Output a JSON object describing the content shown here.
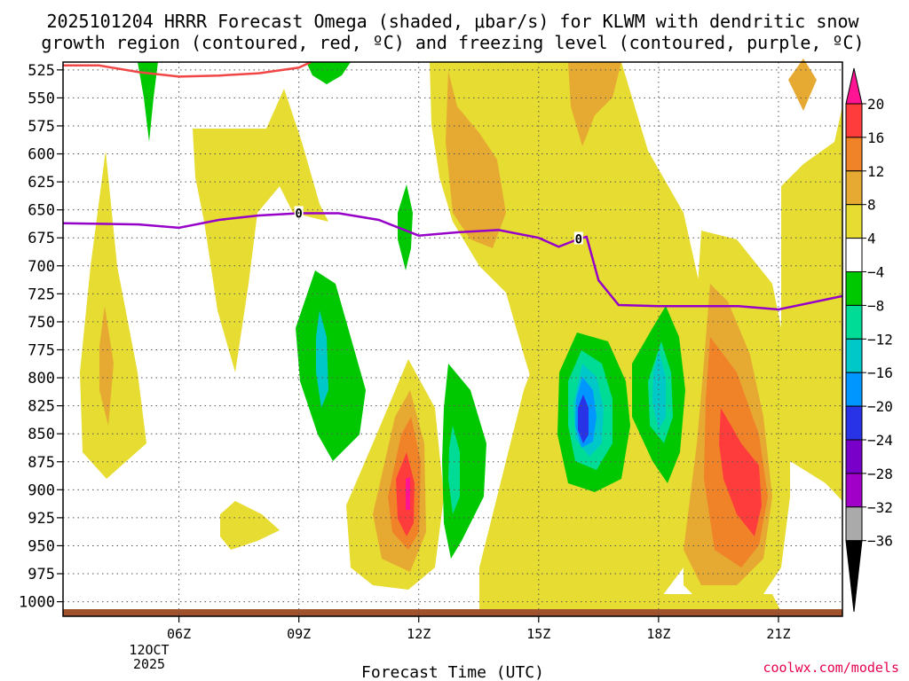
{
  "chart_data": {
    "type": "heatmap",
    "title_line1": "2025101204 HRRR Forecast Omega (shaded, μbar/s) for KLWM with dendritic snow",
    "title_line2": "growth region (contoured, red, ºC) and freezing level (contoured, purple, ºC)",
    "xlabel": "Forecast Time (UTC)",
    "credit": "coolwx.com/models",
    "x_range_hours": [
      3.1,
      22.6
    ],
    "y_range_hpa": [
      1013,
      518
    ],
    "y_ticks": [
      525,
      550,
      575,
      600,
      625,
      650,
      675,
      700,
      725,
      750,
      775,
      800,
      825,
      850,
      875,
      900,
      925,
      950,
      975,
      1000
    ],
    "x_ticks": [
      {
        "hour": 6,
        "label": "06Z"
      },
      {
        "hour": 9,
        "label": "09Z"
      },
      {
        "hour": 12,
        "label": "12Z"
      },
      {
        "hour": 15,
        "label": "15Z"
      },
      {
        "hour": 18,
        "label": "18Z"
      },
      {
        "hour": 21,
        "label": "21Z"
      }
    ],
    "date_label_line1": "12OCT",
    "date_label_line2": "2025",
    "freezing_level_label": "0",
    "freezing_level": {
      "hours": [
        3.1,
        5.0,
        6.0,
        7.0,
        8.0,
        9.0,
        10.0,
        11.0,
        12.0,
        13.0,
        14.0,
        15.0,
        15.5,
        16.0,
        16.2,
        16.5,
        17.0,
        18.0,
        19.0,
        20.0,
        21.0,
        22.6
      ],
      "hpa": [
        662,
        663,
        666,
        659,
        655,
        653,
        653,
        659,
        673,
        670,
        668,
        675,
        683,
        676,
        674,
        713,
        735,
        736,
        736,
        736,
        739,
        727
      ]
    },
    "dgz_boundary": {
      "hours": [
        3.1,
        4.0,
        5.0,
        6.0,
        7.0,
        8.0,
        9.0,
        9.3
      ],
      "hpa": [
        521,
        521,
        527,
        531,
        530,
        528,
        523,
        518
      ]
    },
    "colorbar": {
      "labels": [
        "20",
        "16",
        "12",
        "8",
        "4",
        "−4",
        "−8",
        "−12",
        "−16",
        "−20",
        "−24",
        "−28",
        "−32",
        "−36"
      ],
      "colors": [
        "#ff3c3c",
        "#f08228",
        "#e6aa32",
        "#e6dc32",
        "#ffffff",
        "#00c800",
        "#00dc96",
        "#00c8c8",
        "#0096ff",
        "#2832e6",
        "#7800c8",
        "#a000c8",
        "#aaaaaa",
        "#000000"
      ],
      "top_arrow_color": "#ff1493"
    },
    "colors": {
      "freezing_line": "#9600c8",
      "dgz_line": "#f04646",
      "ground": "#a0522d",
      "credit": "#e60050"
    }
  }
}
